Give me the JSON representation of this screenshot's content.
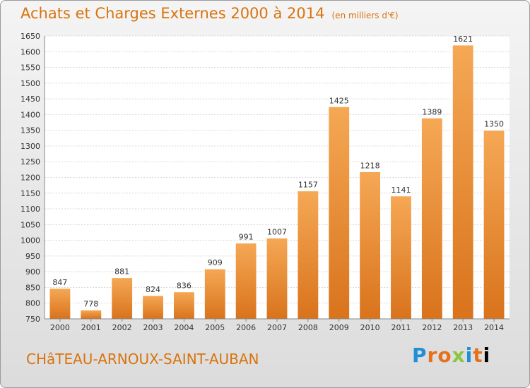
{
  "title": "Achats et Charges Externes 2000 à 2014",
  "unit": "(en milliers d'€)",
  "city": "CHâTEAU-ARNOUX-SAINT-AUBAN",
  "brand": "Proxiti",
  "colors": {
    "bar_light": "#f5a855",
    "bar_dark": "#d9731c",
    "text_accent": "#d9730d"
  },
  "chart_data": {
    "type": "bar",
    "categories": [
      "2000",
      "2001",
      "2002",
      "2003",
      "2004",
      "2005",
      "2006",
      "2007",
      "2008",
      "2009",
      "2010",
      "2011",
      "2012",
      "2013",
      "2014"
    ],
    "values": [
      847,
      778,
      881,
      824,
      836,
      909,
      991,
      1007,
      1157,
      1425,
      1218,
      1141,
      1389,
      1621,
      1350
    ],
    "ylim": [
      750,
      1650
    ],
    "yticks": [
      750,
      800,
      850,
      900,
      950,
      1000,
      1050,
      1100,
      1150,
      1200,
      1250,
      1300,
      1350,
      1400,
      1450,
      1500,
      1550,
      1600,
      1650
    ],
    "grid": true
  }
}
